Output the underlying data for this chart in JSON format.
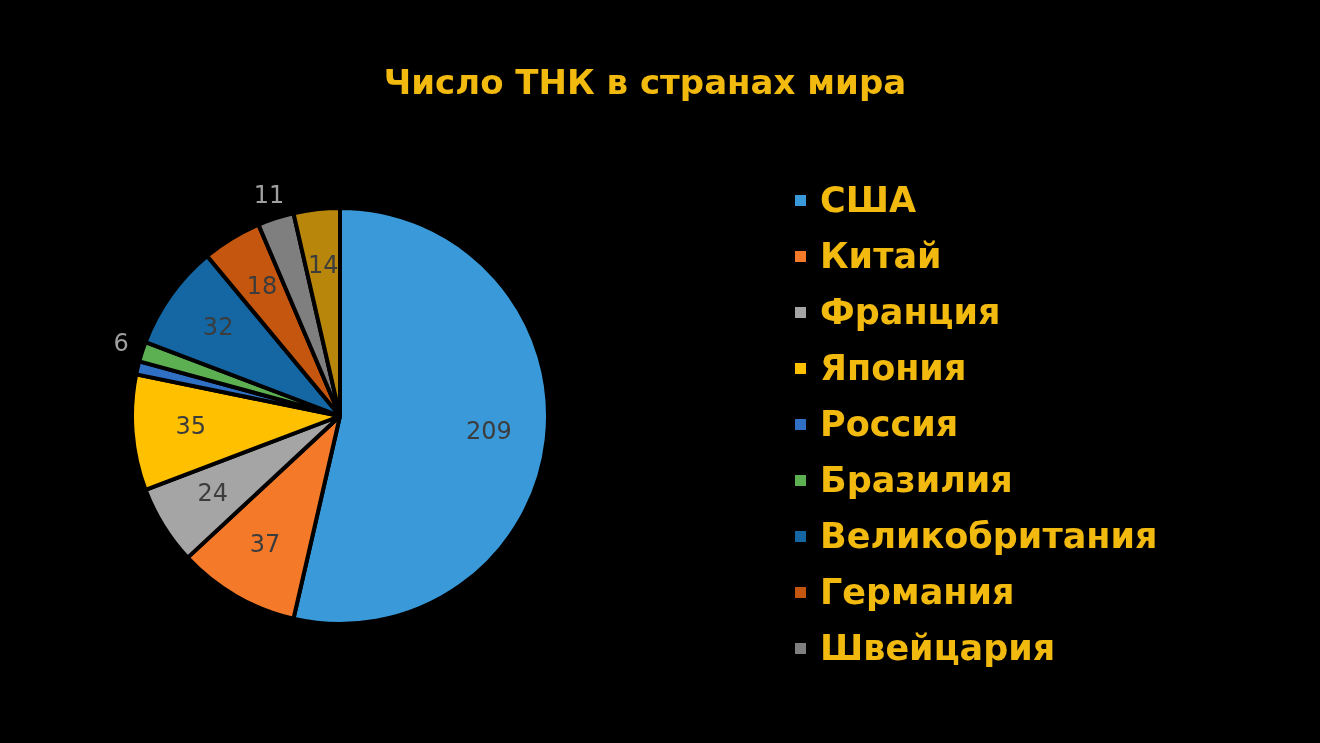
{
  "chart_data": {
    "type": "pie",
    "title": "Число ТНК в странах мира",
    "categories": [
      "США",
      "Китай",
      "Франция",
      "Япония",
      "Россия",
      "Бразилия",
      "Великобритания",
      "Германия",
      "Швейцария",
      null
    ],
    "values": [
      209,
      37,
      24,
      35,
      4,
      6,
      32,
      18,
      11,
      14
    ],
    "value_labels": [
      "209",
      "37",
      "24",
      "35",
      null,
      "6",
      "32",
      "18",
      "11",
      "14"
    ],
    "colors": [
      "#3a9ad9",
      "#f47a2a",
      "#a5a5a5",
      "#ffc000",
      "#2f6fc4",
      "#5cb052",
      "#1467a3",
      "#c4560f",
      "#7f7f7f",
      "#b8860b"
    ],
    "legend": "right"
  }
}
